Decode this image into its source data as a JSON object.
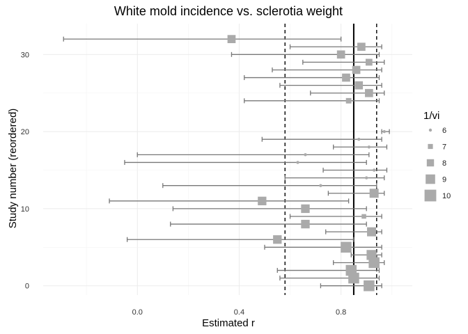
{
  "chart_data": {
    "type": "forest",
    "title": "White mold incidence vs. sclerotia weight",
    "xlabel": "Estimated r",
    "ylabel": "Study number (reordered)",
    "x_ticks": [
      0.0,
      0.4,
      0.8
    ],
    "x_tick_labels": [
      "0.0",
      "0.4",
      "0.8"
    ],
    "y_ticks": [
      0,
      10,
      20,
      30
    ],
    "y_tick_labels": [
      "0",
      "10",
      "20",
      "30"
    ],
    "xlim": [
      -0.37,
      1.08
    ],
    "ylim": [
      -1.2,
      34.0
    ],
    "grid": true,
    "reference_lines": [
      {
        "x": 0.85,
        "style": "solid"
      },
      {
        "x": 0.58,
        "style": "dashed"
      },
      {
        "x": 0.94,
        "style": "dashed"
      }
    ],
    "legend": {
      "title": "1/vi",
      "placement": "right",
      "entries": [
        {
          "label": "6",
          "weight": 6
        },
        {
          "label": "7",
          "weight": 7
        },
        {
          "label": "8",
          "weight": 8
        },
        {
          "label": "9",
          "weight": 9
        },
        {
          "label": "10",
          "weight": 10
        }
      ]
    },
    "point_color": "#aaaaaa",
    "interval_color": "#777777",
    "studies": [
      {
        "y": 0,
        "r": 0.91,
        "lo": 0.72,
        "hi": 0.96,
        "w": 9.6
      },
      {
        "y": 1,
        "r": 0.85,
        "lo": 0.56,
        "hi": 0.95,
        "w": 9.6
      },
      {
        "y": 2,
        "r": 0.84,
        "lo": 0.55,
        "hi": 0.95,
        "w": 9.6
      },
      {
        "y": 3,
        "r": 0.93,
        "lo": 0.77,
        "hi": 0.97,
        "w": 9.6
      },
      {
        "y": 4,
        "r": 0.92,
        "lo": 0.84,
        "hi": 0.96,
        "w": 9.2
      },
      {
        "y": 5,
        "r": 0.82,
        "lo": 0.5,
        "hi": 0.96,
        "w": 9.6
      },
      {
        "y": 6,
        "r": 0.55,
        "lo": -0.04,
        "hi": 0.85,
        "w": 8.6
      },
      {
        "y": 7,
        "r": 0.92,
        "lo": 0.74,
        "hi": 0.96,
        "w": 8.8
      },
      {
        "y": 8,
        "r": 0.66,
        "lo": 0.13,
        "hi": 0.9,
        "w": 8.6
      },
      {
        "y": 9,
        "r": 0.89,
        "lo": 0.6,
        "hi": 0.96,
        "w": 6.8
      },
      {
        "y": 10,
        "r": 0.66,
        "lo": 0.14,
        "hi": 0.9,
        "w": 8.6
      },
      {
        "y": 11,
        "r": 0.49,
        "lo": -0.11,
        "hi": 0.83,
        "w": 8.6
      },
      {
        "y": 12,
        "r": 0.93,
        "lo": 0.75,
        "hi": 0.97,
        "w": 8.8
      },
      {
        "y": 13,
        "r": 0.72,
        "lo": 0.1,
        "hi": 0.94,
        "w": 5.8
      },
      {
        "y": 14,
        "r": 0.9,
        "lo": 0.58,
        "hi": 0.97,
        "w": 5.8
      },
      {
        "y": 15,
        "r": 0.93,
        "lo": 0.73,
        "hi": 0.98,
        "w": 5.8
      },
      {
        "y": 16,
        "r": 0.63,
        "lo": -0.05,
        "hi": 0.9,
        "w": 5.8
      },
      {
        "y": 17,
        "r": 0.66,
        "lo": 0.0,
        "hi": 0.91,
        "w": 5.8
      },
      {
        "y": 18,
        "r": 0.91,
        "lo": 0.77,
        "hi": 0.98,
        "w": 5.8
      },
      {
        "y": 19,
        "r": 0.87,
        "lo": 0.49,
        "hi": 0.96,
        "w": 5.8
      },
      {
        "y": 20,
        "r": 0.97,
        "lo": 0.96,
        "hi": 0.99,
        "w": 5.8
      },
      {
        "y": 24,
        "r": 0.83,
        "lo": 0.42,
        "hi": 0.95,
        "w": 7.2
      },
      {
        "y": 25,
        "r": 0.91,
        "lo": 0.68,
        "hi": 0.97,
        "w": 8.4
      },
      {
        "y": 26,
        "r": 0.87,
        "lo": 0.56,
        "hi": 0.96,
        "w": 8.4
      },
      {
        "y": 27,
        "r": 0.82,
        "lo": 0.42,
        "hi": 0.95,
        "w": 8.4
      },
      {
        "y": 28,
        "r": 0.86,
        "lo": 0.53,
        "hi": 0.96,
        "w": 8.4
      },
      {
        "y": 29,
        "r": 0.91,
        "lo": 0.65,
        "hi": 0.97,
        "w": 7.8
      },
      {
        "y": 30,
        "r": 0.8,
        "lo": 0.37,
        "hi": 0.95,
        "w": 8.4
      },
      {
        "y": 31,
        "r": 0.88,
        "lo": 0.6,
        "hi": 0.96,
        "w": 8.4
      },
      {
        "y": 32,
        "r": 0.37,
        "lo": -0.29,
        "hi": 0.8,
        "w": 8.4
      }
    ]
  }
}
